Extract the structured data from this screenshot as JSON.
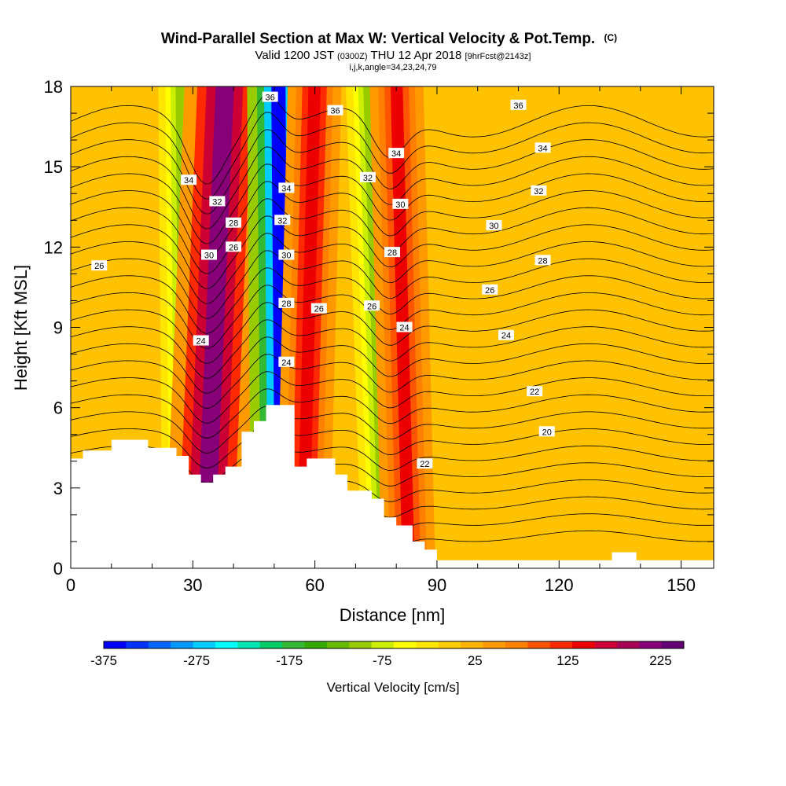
{
  "chart_data": {
    "type": "contour",
    "title": "Wind-Parallel Section at Max W: Vertical Velocity & Pot.Temp.",
    "title_mark": "(C)",
    "subtitle": {
      "valid": "Valid 1200 JST",
      "utc": "(0300Z)",
      "date": "THU 12 Apr 2018",
      "forecast": "[9hrFcst@2143z]"
    },
    "params": "i,j,k,angle=34,23,24,79",
    "xlabel": "Distance [nm]",
    "ylabel": "Height [Kft MSL]",
    "xlim": [
      0,
      158
    ],
    "ylim": [
      0,
      18
    ],
    "xticks": [
      0,
      30,
      60,
      90,
      120,
      150
    ],
    "yticks": [
      0,
      3,
      6,
      9,
      12,
      15,
      18
    ],
    "colorbar": {
      "label": "Vertical Velocity [cm/s]",
      "tick_labels": [
        "-375",
        "-275",
        "-175",
        "-75",
        "25",
        "125",
        "225"
      ],
      "tick_values": [
        -375,
        -275,
        -175,
        -75,
        25,
        125,
        225
      ],
      "range": [
        -375,
        250
      ],
      "colors": [
        "#0000ff",
        "#0033ff",
        "#0066ff",
        "#0099ff",
        "#00ccff",
        "#00ffff",
        "#00e5b2",
        "#00cc66",
        "#33b833",
        "#33aa00",
        "#66bb00",
        "#99cc00",
        "#ccee00",
        "#ffff00",
        "#ffe500",
        "#ffcc00",
        "#ffb300",
        "#ff9900",
        "#ff7f00",
        "#ff5500",
        "#ff2a00",
        "#ee0000",
        "#cc0033",
        "#aa0055",
        "#880077",
        "#660077"
      ]
    },
    "vertical_velocity_bands": [
      {
        "x_top": 27,
        "x_bottom": 28,
        "width": 5,
        "value": -100
      },
      {
        "x_top": 38,
        "x_bottom": 33,
        "width": 9,
        "value": 220
      },
      {
        "x_top": 51,
        "x_bottom": 52,
        "width": 7,
        "value": -360
      },
      {
        "x_top": 60,
        "x_bottom": 57,
        "width": 6,
        "value": 150
      },
      {
        "x_top": 73,
        "x_bottom": 77,
        "width": 5,
        "value": -110
      },
      {
        "x_top": 80,
        "x_bottom": 83,
        "width": 6,
        "value": 140
      }
    ],
    "theta_contour_labels": [
      {
        "value": "36",
        "x": 49,
        "y": 17.6
      },
      {
        "value": "36",
        "x": 65,
        "y": 17.1
      },
      {
        "value": "36",
        "x": 110,
        "y": 17.3
      },
      {
        "value": "34",
        "x": 29,
        "y": 14.5
      },
      {
        "value": "34",
        "x": 53,
        "y": 14.2
      },
      {
        "value": "34",
        "x": 80,
        "y": 15.5
      },
      {
        "value": "34",
        "x": 116,
        "y": 15.7
      },
      {
        "value": "32",
        "x": 36,
        "y": 13.7
      },
      {
        "value": "32",
        "x": 52,
        "y": 13.0
      },
      {
        "value": "32",
        "x": 73,
        "y": 14.6
      },
      {
        "value": "32",
        "x": 115,
        "y": 14.1
      },
      {
        "value": "30",
        "x": 34,
        "y": 11.7
      },
      {
        "value": "30",
        "x": 53,
        "y": 11.7
      },
      {
        "value": "30",
        "x": 81,
        "y": 13.6
      },
      {
        "value": "30",
        "x": 104,
        "y": 12.8
      },
      {
        "value": "28",
        "x": 40,
        "y": 12.9
      },
      {
        "value": "28",
        "x": 53,
        "y": 9.9
      },
      {
        "value": "28",
        "x": 79,
        "y": 11.8
      },
      {
        "value": "28",
        "x": 116,
        "y": 11.5
      },
      {
        "value": "26",
        "x": 7,
        "y": 11.3
      },
      {
        "value": "26",
        "x": 40,
        "y": 12.0
      },
      {
        "value": "26",
        "x": 61,
        "y": 9.7
      },
      {
        "value": "26",
        "x": 74,
        "y": 9.8
      },
      {
        "value": "26",
        "x": 103,
        "y": 10.4
      },
      {
        "value": "24",
        "x": 32,
        "y": 8.5
      },
      {
        "value": "24",
        "x": 53,
        "y": 7.7
      },
      {
        "value": "24",
        "x": 82,
        "y": 9.0
      },
      {
        "value": "24",
        "x": 107,
        "y": 8.7
      },
      {
        "value": "22",
        "x": 114,
        "y": 6.6
      },
      {
        "value": "22",
        "x": 87,
        "y": 3.9
      },
      {
        "value": "20",
        "x": 117,
        "y": 5.1
      }
    ],
    "terrain_profile": [
      [
        0,
        4.1
      ],
      [
        3,
        4.1
      ],
      [
        3,
        4.4
      ],
      [
        10,
        4.4
      ],
      [
        10,
        4.8
      ],
      [
        19,
        4.8
      ],
      [
        19,
        4.5
      ],
      [
        26,
        4.5
      ],
      [
        26,
        4.2
      ],
      [
        29,
        4.2
      ],
      [
        29,
        3.5
      ],
      [
        32,
        3.5
      ],
      [
        32,
        3.2
      ],
      [
        35,
        3.2
      ],
      [
        35,
        3.5
      ],
      [
        38,
        3.5
      ],
      [
        38,
        3.8
      ],
      [
        42,
        3.8
      ],
      [
        42,
        5.1
      ],
      [
        45,
        5.1
      ],
      [
        45,
        5.5
      ],
      [
        48,
        5.5
      ],
      [
        48,
        6.1
      ],
      [
        52,
        6.1
      ],
      [
        52,
        6.1
      ],
      [
        55,
        6.1
      ],
      [
        55,
        3.8
      ],
      [
        58,
        3.8
      ],
      [
        58,
        4.1
      ],
      [
        65,
        4.1
      ],
      [
        65,
        3.5
      ],
      [
        68,
        3.5
      ],
      [
        68,
        2.9
      ],
      [
        74,
        2.9
      ],
      [
        74,
        2.6
      ],
      [
        77,
        2.6
      ],
      [
        77,
        1.9
      ],
      [
        80,
        1.9
      ],
      [
        80,
        1.6
      ],
      [
        84,
        1.6
      ],
      [
        84,
        1.0
      ],
      [
        87,
        1.0
      ],
      [
        87,
        0.7
      ],
      [
        90,
        0.7
      ],
      [
        90,
        0.3
      ],
      [
        133,
        0.3
      ],
      [
        133,
        0.6
      ],
      [
        139,
        0.6
      ],
      [
        139,
        0.3
      ],
      [
        158,
        0.3
      ]
    ]
  }
}
